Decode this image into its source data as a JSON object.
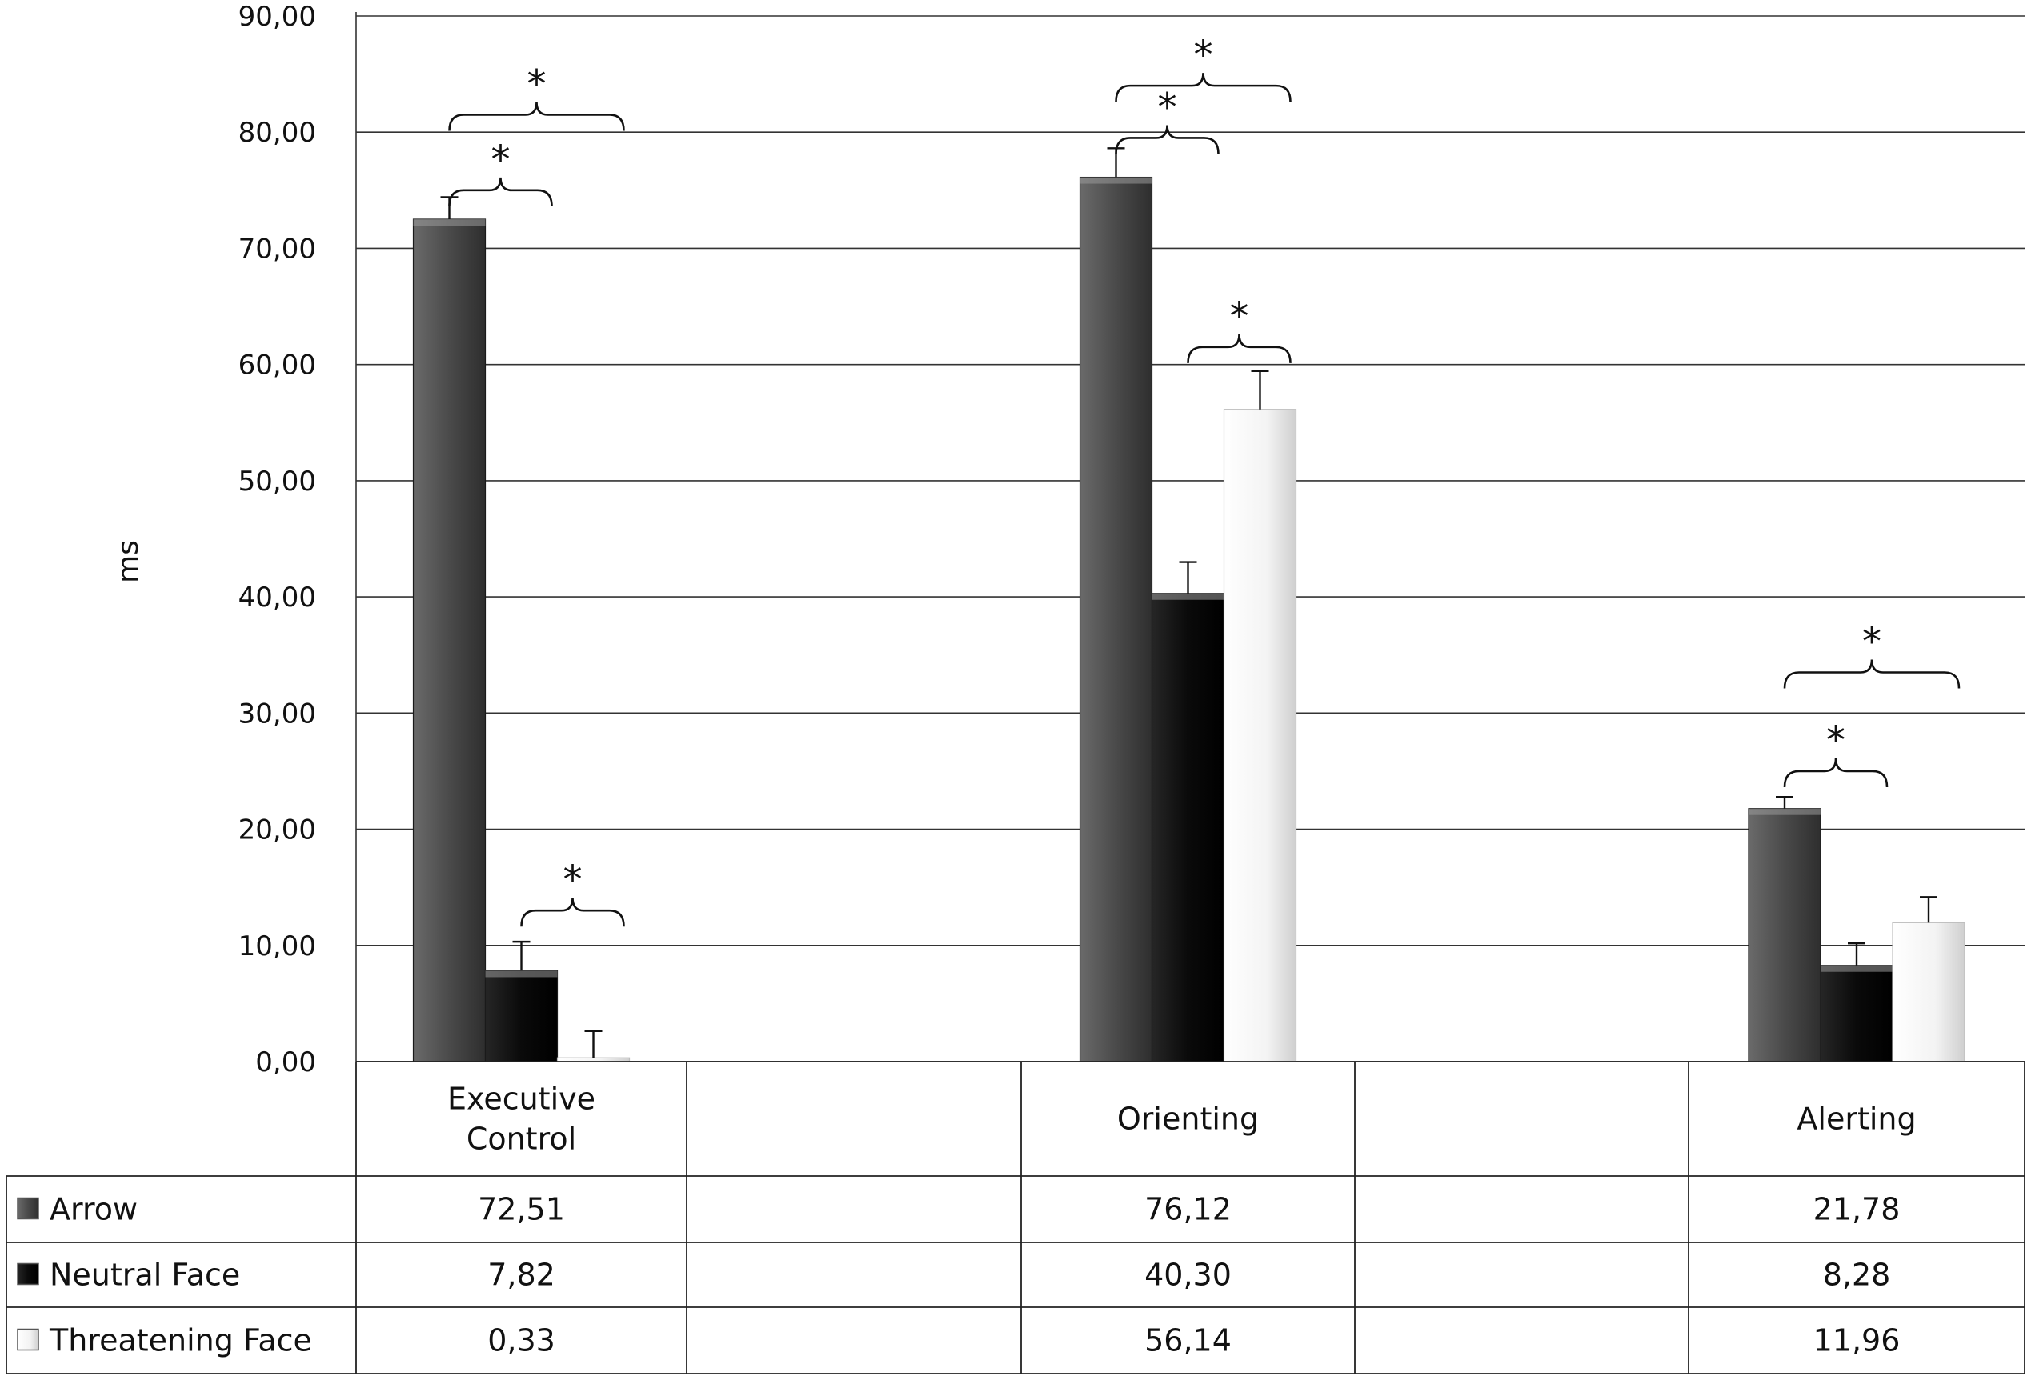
{
  "chart_data": {
    "type": "bar",
    "ylabel": "ms",
    "ylim": [
      0,
      90
    ],
    "yticks": [
      "0,00",
      "10,00",
      "20,00",
      "30,00",
      "40,00",
      "50,00",
      "60,00",
      "70,00",
      "80,00",
      "90,00"
    ],
    "categories": [
      {
        "lines": [
          "Executive",
          "Control"
        ]
      },
      {
        "lines": [
          "Orienting"
        ]
      },
      {
        "lines": [
          "Alerting"
        ]
      }
    ],
    "series": [
      {
        "name": "Arrow",
        "color": "#4a4a4a",
        "values": [
          72.51,
          76.12,
          21.78
        ],
        "errors": [
          1.9,
          2.5,
          1.0
        ],
        "labels": [
          "72,51",
          "76,12",
          "21,78"
        ]
      },
      {
        "name": "Neutral Face",
        "color": "#0d0d0d",
        "values": [
          7.82,
          40.3,
          8.28
        ],
        "errors": [
          2.5,
          2.7,
          1.9
        ],
        "labels": [
          "7,82",
          "40,30",
          "8,28"
        ]
      },
      {
        "name": "Threatening Face",
        "color": "#f2f2f2",
        "values": [
          0.33,
          56.14,
          11.96
        ],
        "errors": [
          2.3,
          3.3,
          2.2
        ],
        "labels": [
          "0,33",
          "56,14",
          "11,96"
        ]
      }
    ],
    "significance": [
      {
        "category": 0,
        "from": 0,
        "to": 2,
        "y": 81.5,
        "label": "*"
      },
      {
        "category": 0,
        "from": 0,
        "to": 1,
        "y": 75.0,
        "label": "*"
      },
      {
        "category": 0,
        "from": 1,
        "to": 2,
        "y": 13.0,
        "label": "*"
      },
      {
        "category": 1,
        "from": 0,
        "to": 2,
        "y": 84.0,
        "label": "*"
      },
      {
        "category": 1,
        "from": 0,
        "to": 1,
        "y": 79.5,
        "label": "*"
      },
      {
        "category": 1,
        "from": 1,
        "to": 2,
        "y": 61.5,
        "label": "*"
      },
      {
        "category": 2,
        "from": 0,
        "to": 2,
        "y": 33.5,
        "label": "*"
      },
      {
        "category": 2,
        "from": 0,
        "to": 1,
        "y": 25.0,
        "label": "*"
      }
    ],
    "grid": true,
    "legend": "data-table"
  }
}
